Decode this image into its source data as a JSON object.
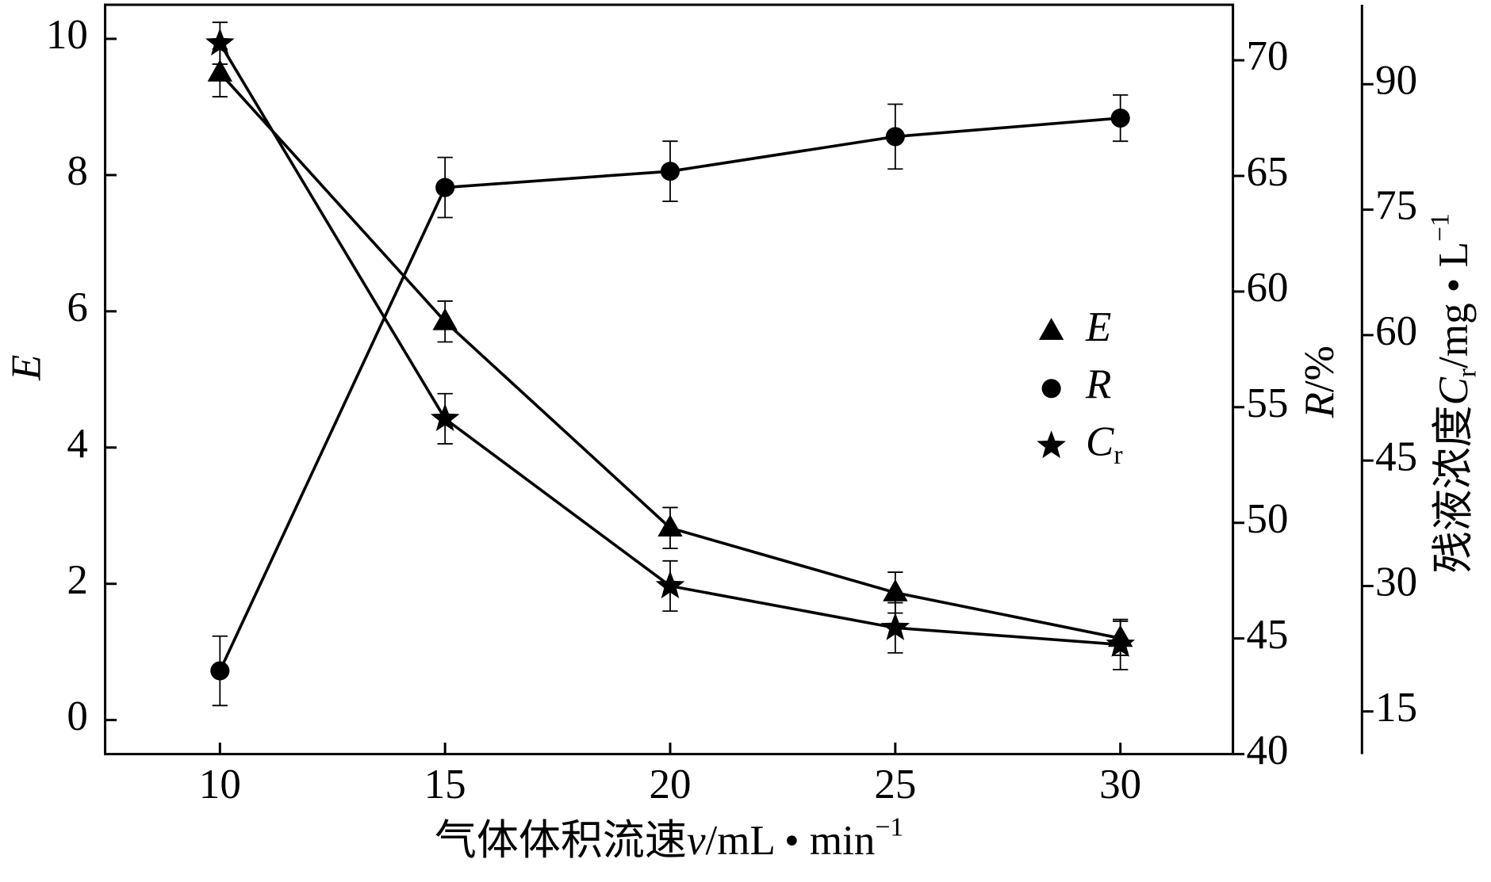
{
  "chart_data": {
    "type": "line",
    "xlabel": [
      "气体体积流速",
      "v",
      "/mL • min",
      "−1"
    ],
    "ylabel": "E",
    "y2label": [
      "R",
      "/%"
    ],
    "y3label": [
      "残液浓度",
      "C",
      "r",
      "/mg • L",
      "−1"
    ],
    "x": [
      10,
      15,
      20,
      25,
      30
    ],
    "xlim": [
      7.45,
      32.5
    ],
    "xticks": [
      10,
      15,
      20,
      25,
      30
    ],
    "ylim": [
      -0.5,
      10.5
    ],
    "yticks": [
      0,
      2,
      4,
      6,
      8,
      10
    ],
    "y2lim": [
      40,
      72.4
    ],
    "y2ticks": [
      40,
      45,
      50,
      55,
      60,
      65,
      70
    ],
    "y3lim": [
      9.9,
      99.5
    ],
    "y3ticks": [
      15,
      30,
      45,
      60,
      75,
      90
    ],
    "series": [
      {
        "name": "E",
        "color": "#000000",
        "marker": "triangle",
        "axis": "y",
        "values": [
          9.5,
          5.85,
          2.82,
          1.87,
          1.2
        ],
        "errors": [
          0.35,
          0.3,
          0.3,
          0.3,
          0.25
        ]
      },
      {
        "name": "R",
        "color": "#000000",
        "marker": "circle",
        "axis": "y2",
        "values": [
          43.6,
          64.5,
          65.2,
          66.7,
          67.5
        ],
        "errors": [
          1.5,
          1.3,
          1.3,
          1.4,
          1.0
        ]
      },
      {
        "name": "C",
        "subscript": "r",
        "color": "#000000",
        "marker": "star",
        "axis": "y3",
        "values": [
          94.9,
          50.0,
          30.0,
          25.0,
          23.0
        ],
        "errors": [
          2.5,
          3,
          3,
          3,
          3
        ]
      }
    ]
  }
}
